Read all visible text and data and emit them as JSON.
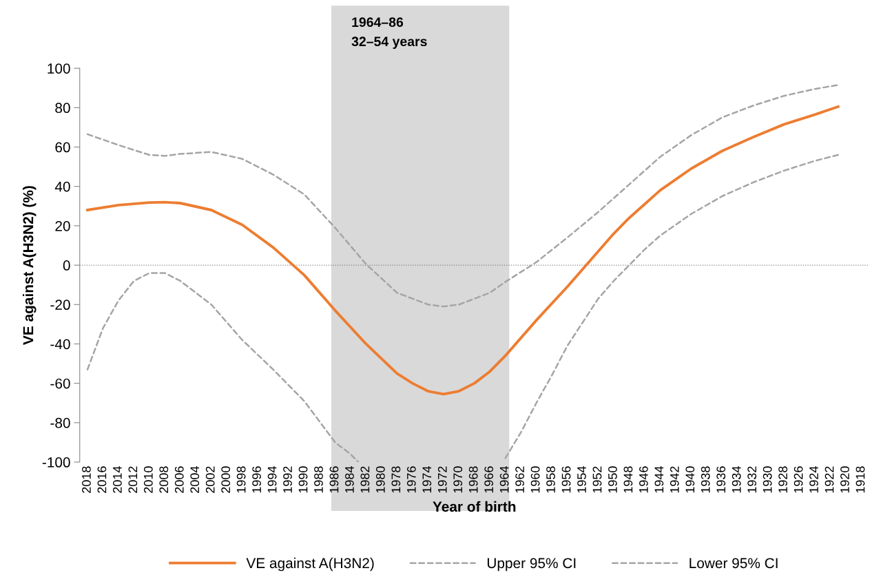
{
  "chart_data": {
    "type": "line",
    "xlabel": "Year of birth",
    "ylabel": "VE against A(H3N2) (%)",
    "xlim": [
      2019,
      1917
    ],
    "xticks": [
      2018,
      2016,
      2014,
      2012,
      2010,
      2008,
      2006,
      2004,
      2002,
      2000,
      1998,
      1996,
      1994,
      1992,
      1990,
      1988,
      1986,
      1984,
      1982,
      1980,
      1978,
      1976,
      1974,
      1972,
      1970,
      1968,
      1966,
      1964,
      1962,
      1960,
      1958,
      1956,
      1954,
      1952,
      1950,
      1948,
      1946,
      1944,
      1942,
      1940,
      1938,
      1936,
      1934,
      1932,
      1930,
      1928,
      1926,
      1924,
      1922,
      1920,
      1918
    ],
    "ylim": [
      -100,
      100
    ],
    "yticks": [
      -100,
      -80,
      -60,
      -40,
      -20,
      0,
      20,
      40,
      60,
      80,
      100
    ],
    "grid": false,
    "legend": "bottom",
    "series": [
      {
        "name": "VE against A(H3N2)",
        "color": "#ed7d31",
        "line_style": "solid",
        "x": [
          2018,
          2014,
          2010,
          2008,
          2006,
          2002,
          1998,
          1994,
          1992,
          1990,
          1986,
          1982,
          1978,
          1976,
          1974,
          1972,
          1970,
          1968,
          1966,
          1964,
          1962,
          1960,
          1956,
          1954,
          1952,
          1950,
          1948,
          1946,
          1944,
          1940,
          1936,
          1932,
          1928,
          1924,
          1921
        ],
        "values": [
          28,
          30.5,
          31.8,
          32,
          31.5,
          28,
          20.5,
          9,
          2,
          -5,
          -23,
          -40,
          -55,
          -60,
          -64,
          -65.5,
          -64,
          -60,
          -54,
          -46,
          -37,
          -28,
          -11,
          -2,
          7,
          16,
          24,
          31,
          38,
          49,
          58,
          65,
          71.5,
          76.5,
          80.5
        ]
      },
      {
        "name": "Upper 95% CI",
        "color": "#a5a5a5",
        "line_style": "dashed",
        "x": [
          2018,
          2014,
          2010,
          2008,
          2006,
          2002,
          1998,
          1994,
          1990,
          1986,
          1982,
          1978,
          1974,
          1972,
          1970,
          1966,
          1964,
          1960,
          1956,
          1952,
          1948,
          1944,
          1940,
          1936,
          1932,
          1928,
          1924,
          1921
        ],
        "values": [
          66.5,
          61,
          56,
          55.5,
          56.5,
          57.5,
          54,
          46,
          36,
          19,
          0.5,
          -14,
          -20,
          -21,
          -20,
          -14,
          -8.5,
          1.5,
          14,
          27,
          41,
          55,
          66,
          75,
          81,
          86,
          89.5,
          91.5
        ]
      },
      {
        "name": "Lower 95% CI",
        "color": "#a5a5a5",
        "line_style": "dashed",
        "x": [
          2018,
          2016,
          2014,
          2012,
          2010,
          2008,
          2006,
          2002,
          1998,
          1994,
          1990,
          1986,
          1984,
          1983,
          null,
          1964,
          1962,
          1960,
          1958,
          1956,
          1954,
          1952,
          1950,
          1948,
          1946,
          1944,
          1940,
          1936,
          1932,
          1928,
          1924,
          1921
        ],
        "values": [
          -53,
          -32,
          -18,
          -8,
          -4,
          -4,
          -8,
          -20,
          -38,
          -53,
          -69,
          -90,
          -96,
          -100,
          null,
          -98,
          -85,
          -70,
          -56,
          -41,
          -29,
          -17,
          -8,
          0,
          8,
          15,
          26,
          35,
          42,
          48,
          53,
          56
        ]
      }
    ],
    "ref_lines": [
      {
        "axis": "y",
        "value": 0,
        "color": "#808080",
        "line_style": "dotted"
      }
    ],
    "bands": [
      {
        "axis": "x",
        "from": 1986.5,
        "to": 1963.5,
        "label": "1964–86\n32–54 years",
        "color": "#d9d9d9"
      }
    ]
  }
}
